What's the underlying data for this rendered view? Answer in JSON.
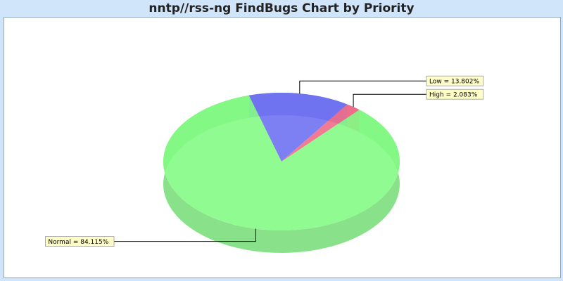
{
  "chart_data": {
    "type": "pie",
    "title": "nntp//rss-ng FindBugs Chart by Priority",
    "style": "3d",
    "slices": [
      {
        "name": "Low",
        "value": 13.802,
        "label": "Low = 13.802%",
        "color": "#6f72f2"
      },
      {
        "name": "High",
        "value": 2.083,
        "label": "High = 2.083%",
        "color": "#f06d8a"
      },
      {
        "name": "Normal",
        "value": 84.115,
        "label": "Normal = 84.115%",
        "color": "#84fb84"
      }
    ],
    "label_background": "#fffdc8",
    "plot_background": "#ffffff",
    "page_background": "#d0e4fa"
  }
}
